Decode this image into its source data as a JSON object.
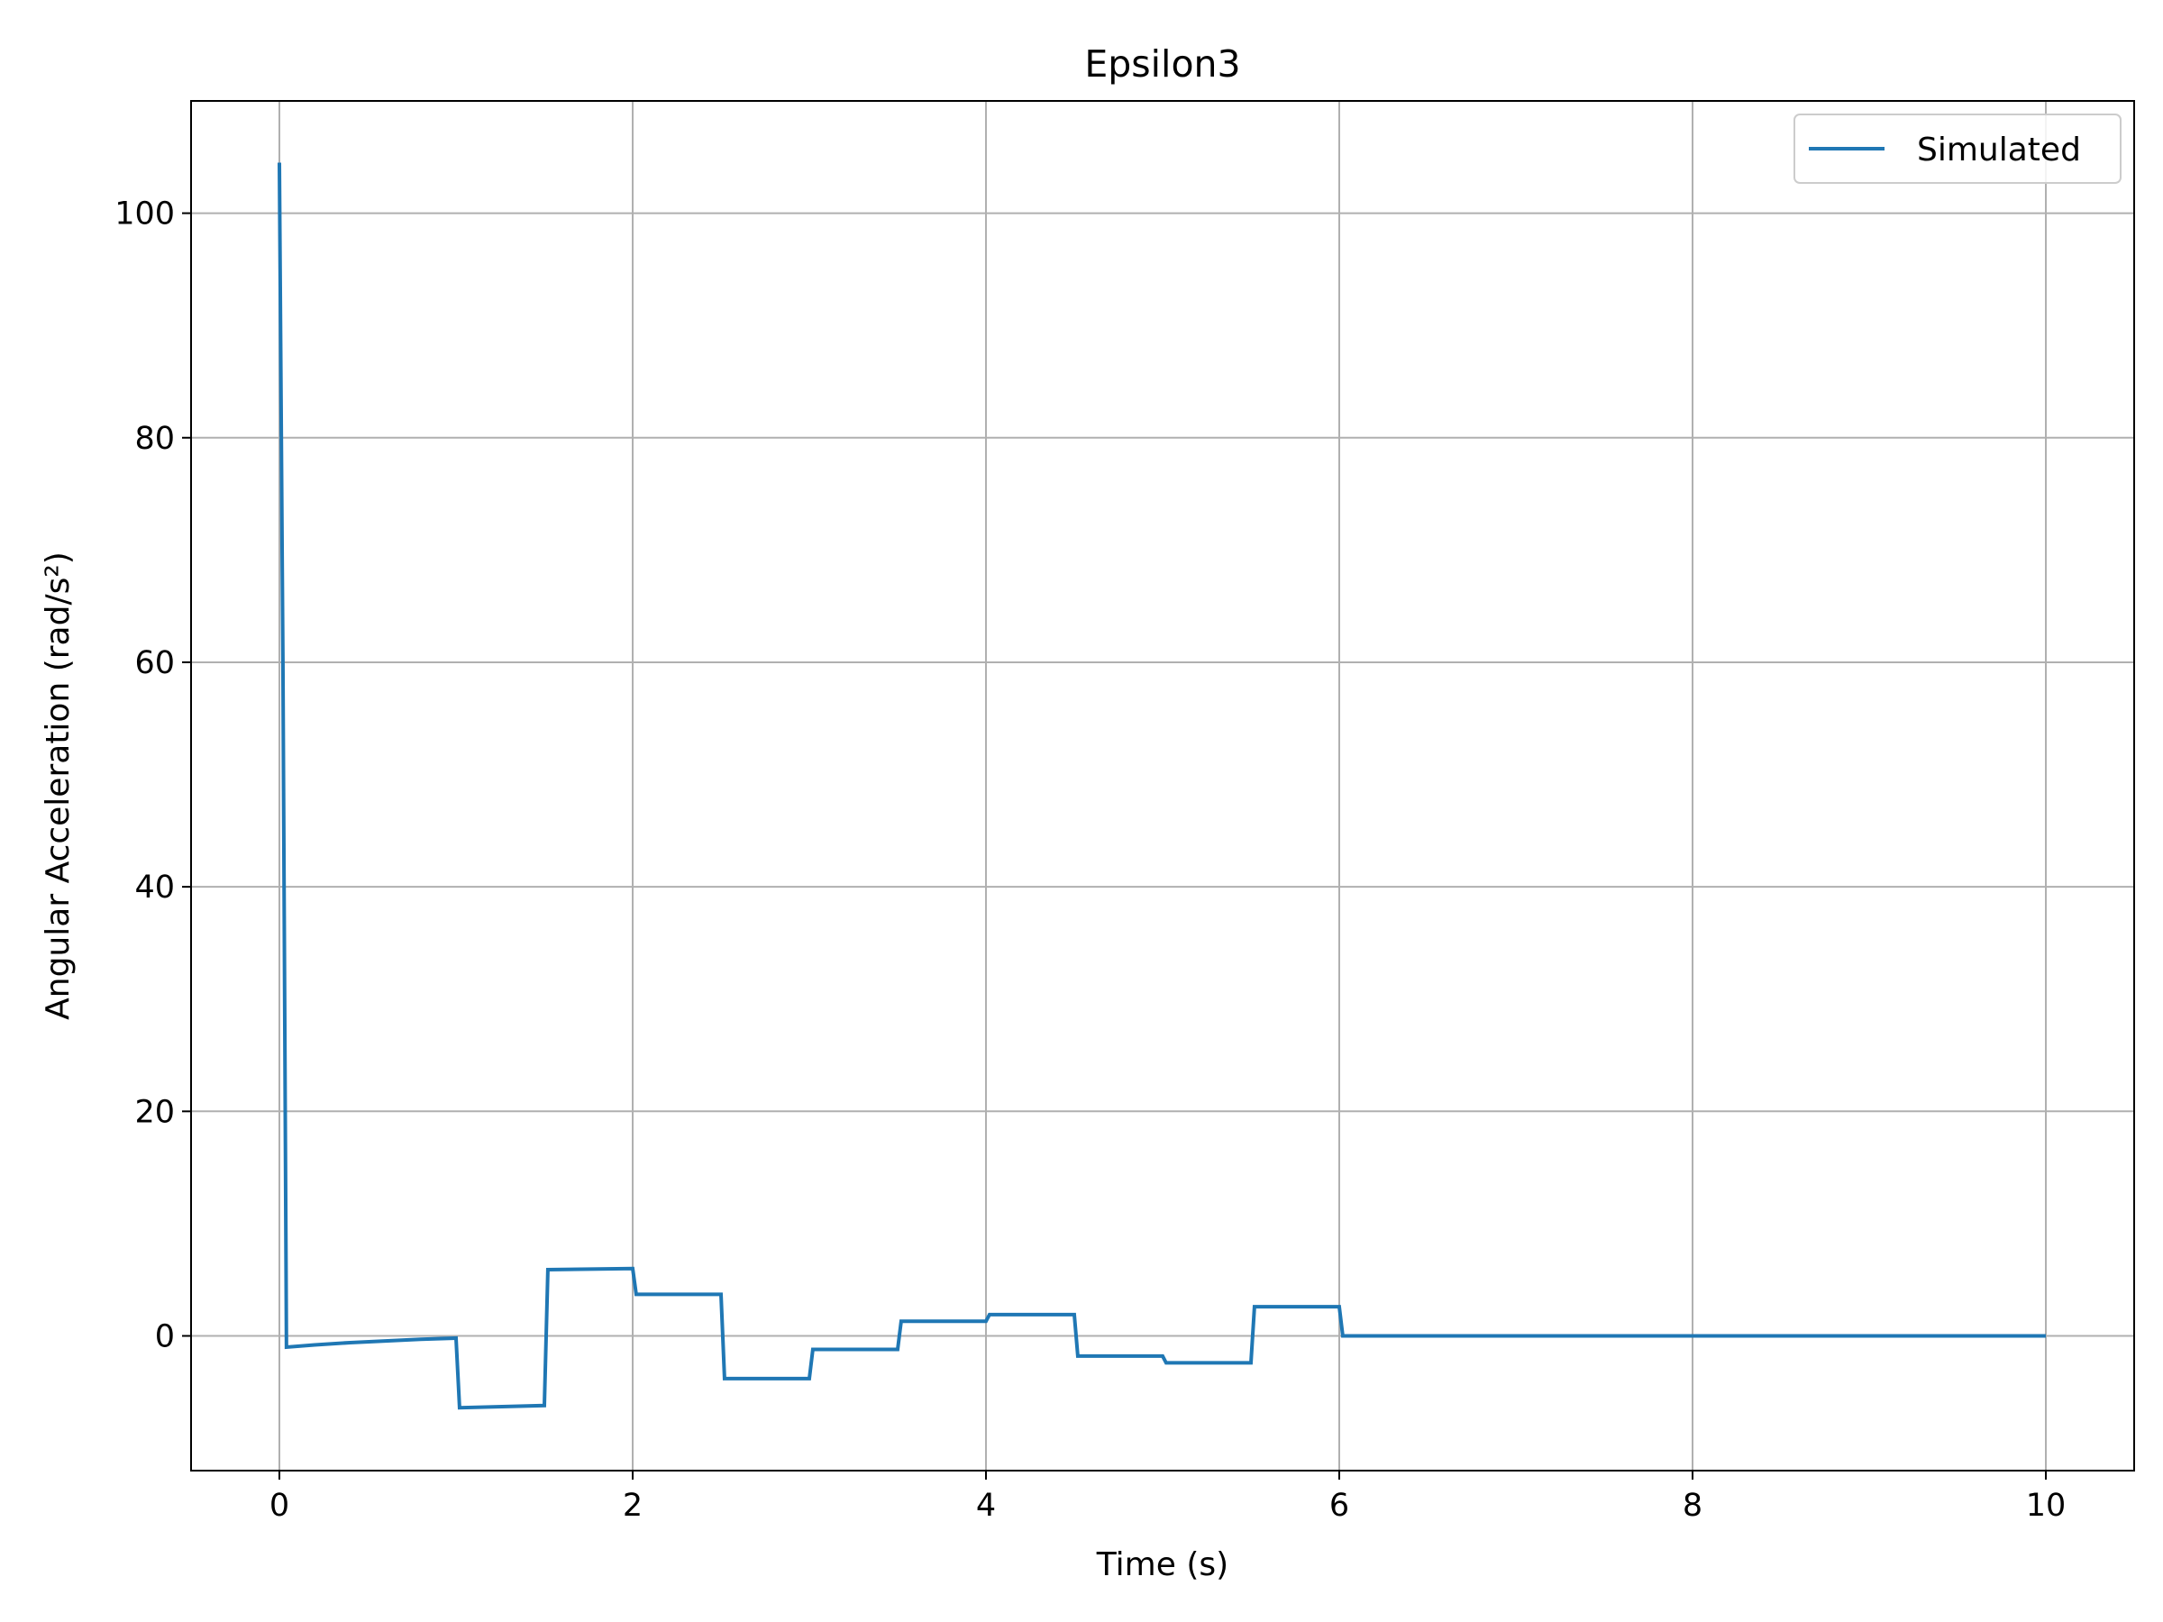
{
  "chart_data": {
    "type": "line",
    "title": "Epsilon3",
    "xlabel": "Time (s)",
    "ylabel": "Angular Acceleration (rad/s²)",
    "xlim": [
      -0.5,
      10.5
    ],
    "ylim": [
      -12,
      110
    ],
    "xticks": [
      0,
      2,
      4,
      6,
      8,
      10
    ],
    "yticks": [
      0,
      20,
      40,
      60,
      80,
      100
    ],
    "grid": true,
    "legend_position": "upper right",
    "series": [
      {
        "name": "Simulated",
        "color": "#1f77b4",
        "x": [
          0.0,
          0.02,
          0.04,
          0.2,
          0.4,
          0.6,
          0.8,
          1.0,
          1.02,
          1.5,
          1.52,
          2.0,
          2.02,
          2.5,
          2.52,
          3.0,
          3.02,
          3.5,
          3.52,
          4.0,
          4.02,
          4.5,
          4.52,
          5.0,
          5.02,
          5.5,
          5.52,
          6.0,
          6.02,
          10.0
        ],
        "y": [
          104.5,
          60.0,
          -1.0,
          -0.8,
          -0.6,
          -0.45,
          -0.3,
          -0.2,
          -6.4,
          -6.2,
          5.9,
          6.0,
          3.7,
          3.7,
          -3.8,
          -3.8,
          -1.2,
          -1.2,
          1.3,
          1.3,
          1.9,
          1.9,
          -1.8,
          -1.8,
          -2.4,
          -2.4,
          2.6,
          2.6,
          0.0,
          0.0
        ]
      }
    ]
  }
}
